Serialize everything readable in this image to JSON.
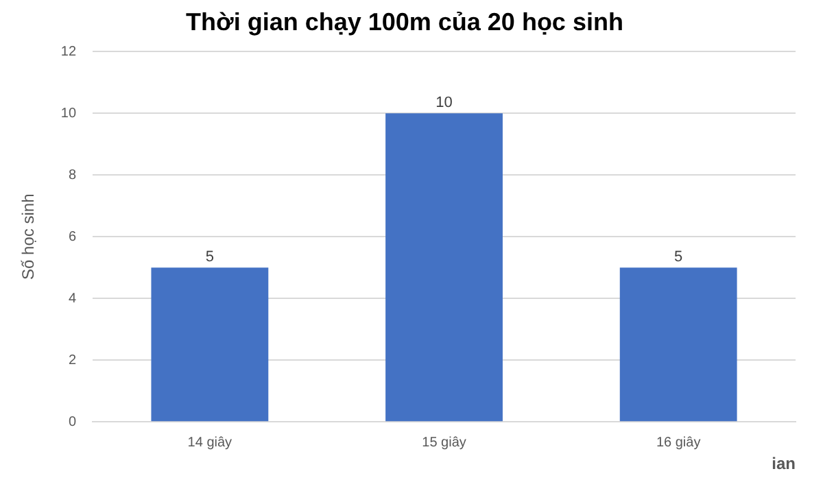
{
  "chart_data": {
    "type": "bar",
    "title": "Thời gian chạy 100m của 20 học sinh",
    "xlabel": "ian",
    "ylabel": "Số học sinh",
    "categories": [
      "14 giây",
      "15 giây",
      "16 giây"
    ],
    "values": [
      5,
      10,
      5
    ],
    "color": "#4472c4",
    "ylim": [
      0,
      12
    ],
    "yticks": [
      0,
      2,
      4,
      6,
      8,
      10,
      12
    ],
    "grid": "y",
    "data_labels": true,
    "legend": false
  }
}
